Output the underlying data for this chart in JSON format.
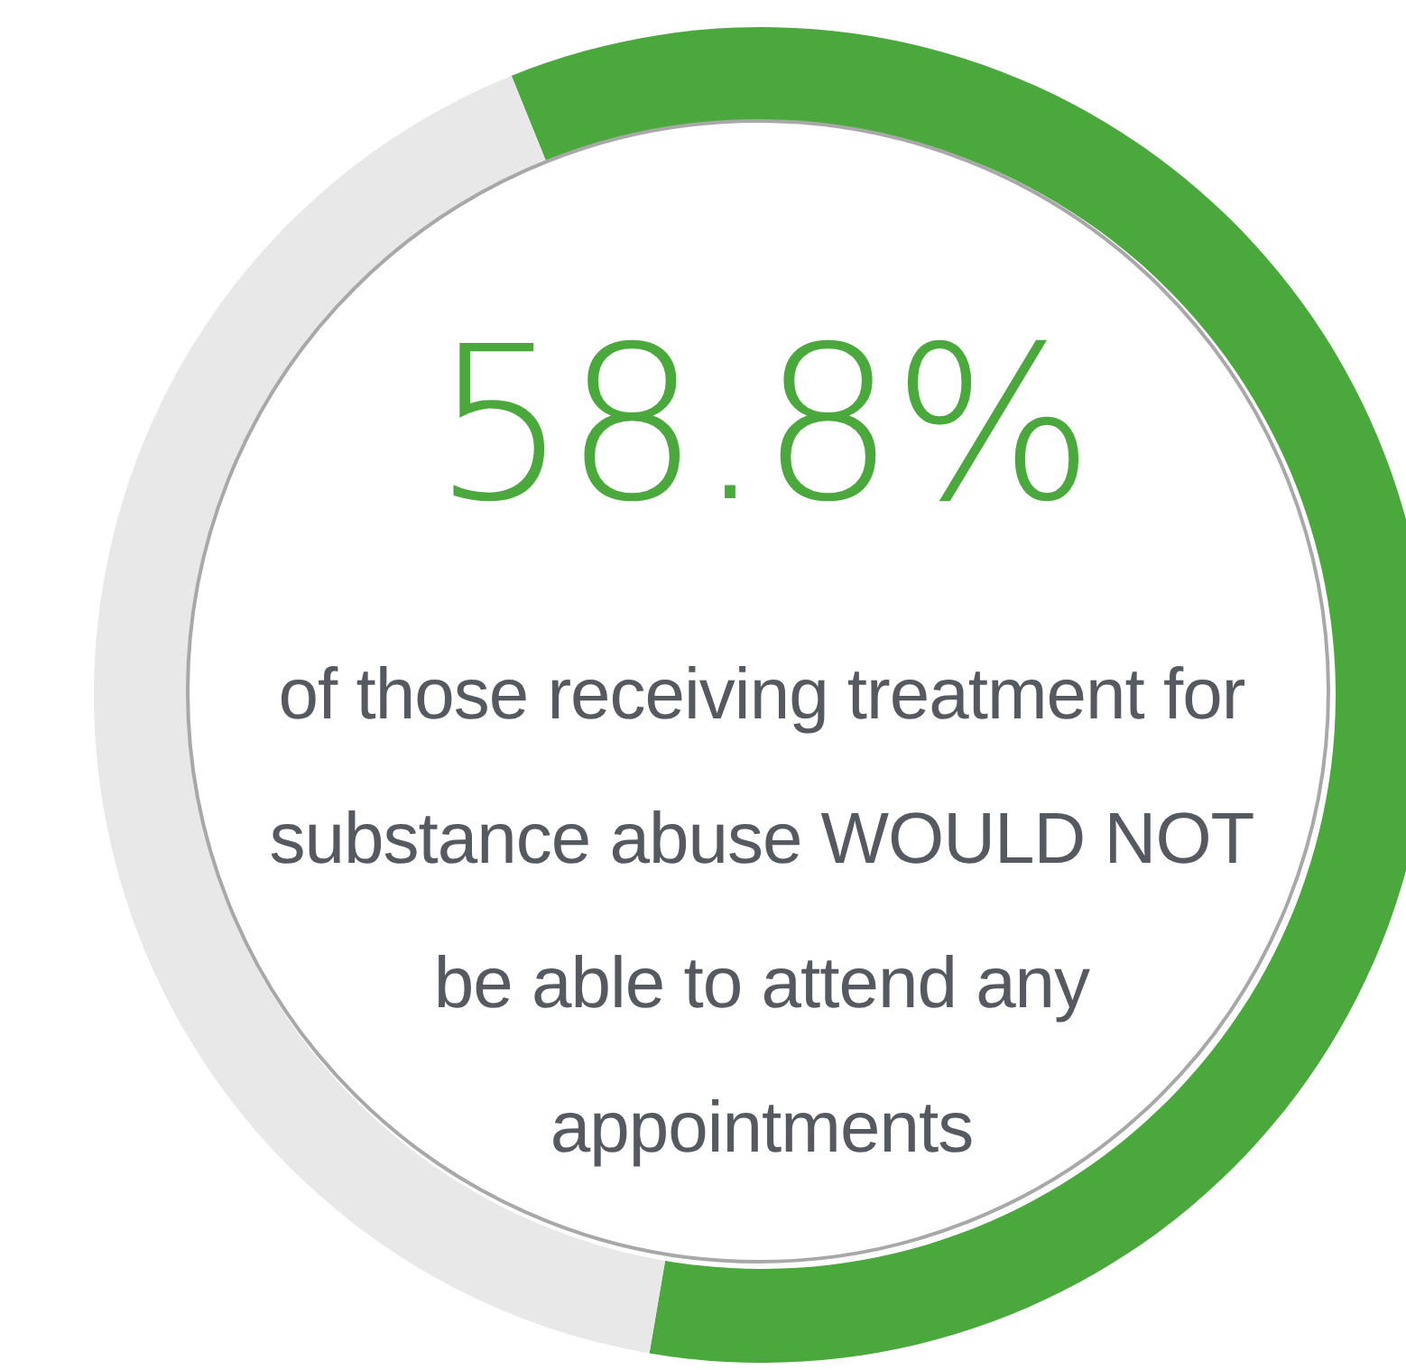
{
  "chart_data": {
    "type": "donut",
    "categories": [
      null,
      null
    ],
    "values": [
      58.8,
      41.2
    ],
    "colors": [
      "#4aa83c",
      "#e8e8e8"
    ],
    "value_labels": [
      "58.8%",
      null
    ],
    "annotations": [
      "of those receiving treatment for substance abuse WOULD NOT be able to attend any appointments"
    ]
  }
}
